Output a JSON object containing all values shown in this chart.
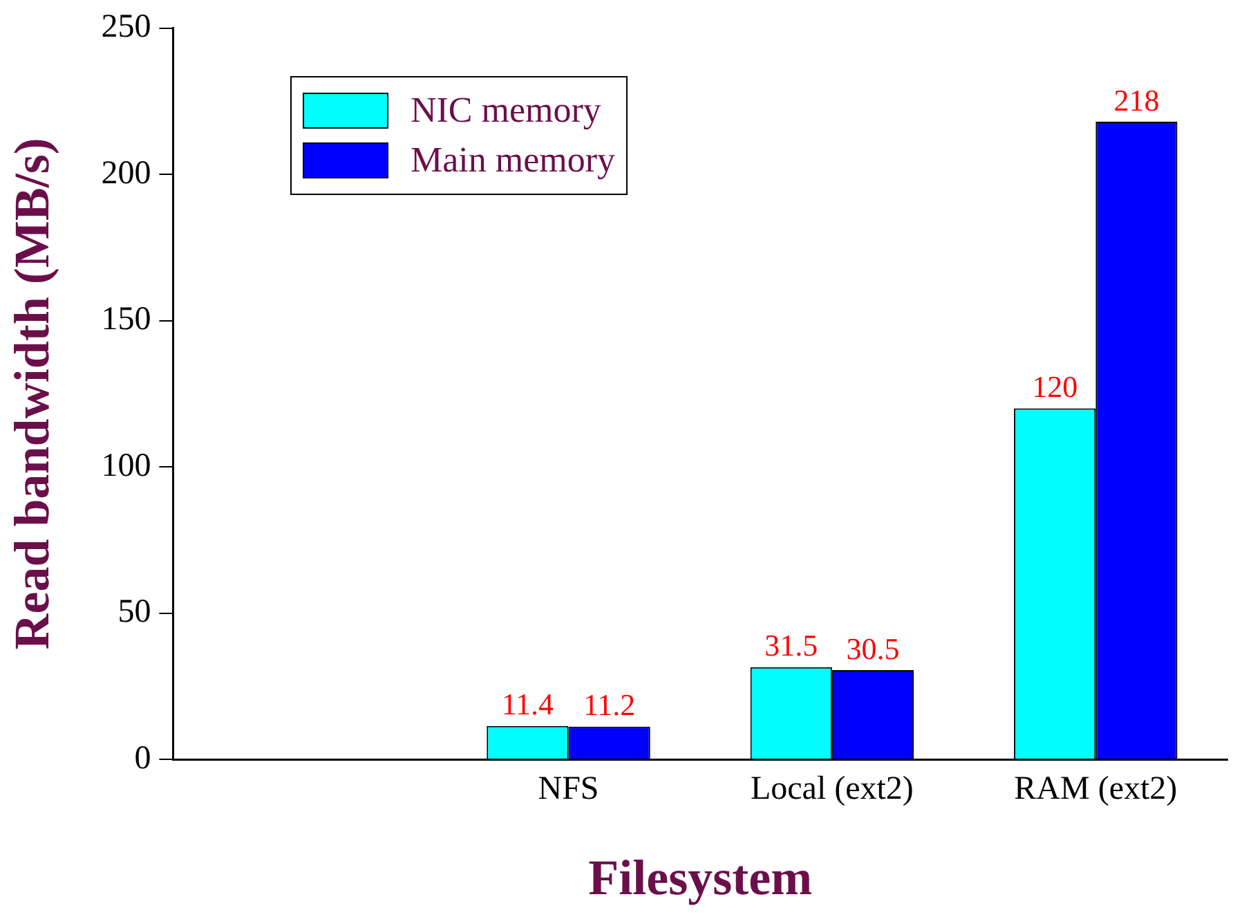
{
  "chart_data": {
    "type": "bar",
    "xlabel": "Filesystem",
    "ylabel": "Read bandwidth (MB/s)",
    "categories": [
      null,
      "NFS",
      "Local (ext2)",
      "RAM (ext2)"
    ],
    "series": [
      {
        "name": "NIC memory",
        "color": "#00ffff",
        "values": [
          null,
          11.4,
          31.5,
          120
        ]
      },
      {
        "name": "Main memory",
        "color": "#0000ff",
        "values": [
          null,
          11.2,
          30.5,
          218
        ]
      }
    ],
    "ylim": [
      0,
      250
    ],
    "yticks": [
      0,
      50,
      100,
      150,
      200,
      250
    ],
    "grid": false,
    "legend": "top left",
    "data_labels": true
  }
}
